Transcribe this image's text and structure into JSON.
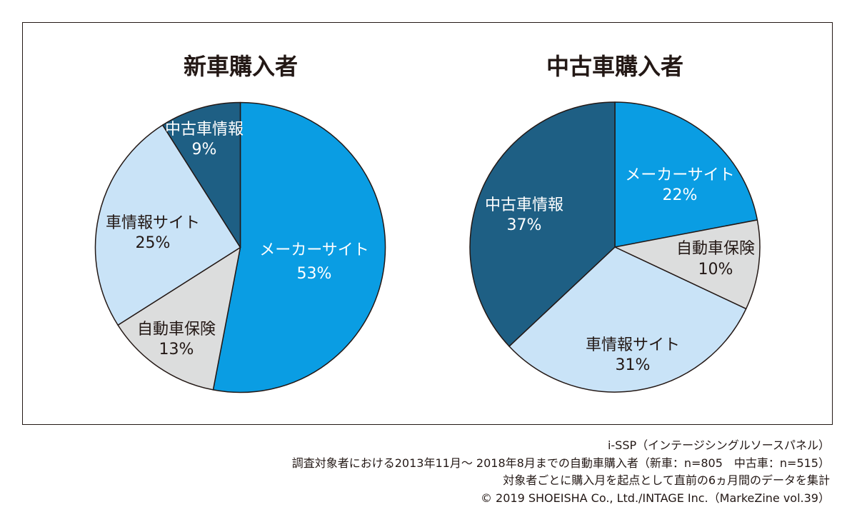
{
  "chart_data": [
    {
      "type": "pie",
      "title": "新車購入者",
      "slices": [
        {
          "name": "メーカーサイト",
          "value": 53,
          "label": "53%",
          "color": "#0a9de3",
          "text_color": "#ffffff"
        },
        {
          "name": "自動車保険",
          "value": 13,
          "label": "13%",
          "color": "#dcdddd",
          "text_color": "#231815"
        },
        {
          "name": "車情報サイト",
          "value": 25,
          "label": "25%",
          "color": "#c9e3f7",
          "text_color": "#231815"
        },
        {
          "name": "中古車情報",
          "value": 9,
          "label": "9%",
          "color": "#1e5f84",
          "text_color": "#ffffff"
        }
      ]
    },
    {
      "type": "pie",
      "title": "中古車購入者",
      "slices": [
        {
          "name": "メーカーサイト",
          "value": 22,
          "label": "22%",
          "color": "#0a9de3",
          "text_color": "#ffffff"
        },
        {
          "name": "自動車保険",
          "value": 10,
          "label": "10%",
          "color": "#dcdddd",
          "text_color": "#231815"
        },
        {
          "name": "車情報サイト",
          "value": 31,
          "label": "31%",
          "color": "#c9e3f7",
          "text_color": "#231815"
        },
        {
          "name": "中古車情報",
          "value": 37,
          "label": "37%",
          "color": "#1e5f84",
          "text_color": "#ffffff"
        }
      ]
    }
  ],
  "footer": {
    "line1": "i-SSP（インテージシングルソースパネル）",
    "line2": "調査対象者における2013年11月～ 2018年8月までの自動車購入者（新車：n=805　中古車：n=515）",
    "line3": "対象者ごとに購入月を起点として直前の6ヵ月間のデータを集計",
    "line4": "© 2019 SHOEISHA Co., Ltd./INTAGE Inc.（MarkeZine vol.39）"
  }
}
